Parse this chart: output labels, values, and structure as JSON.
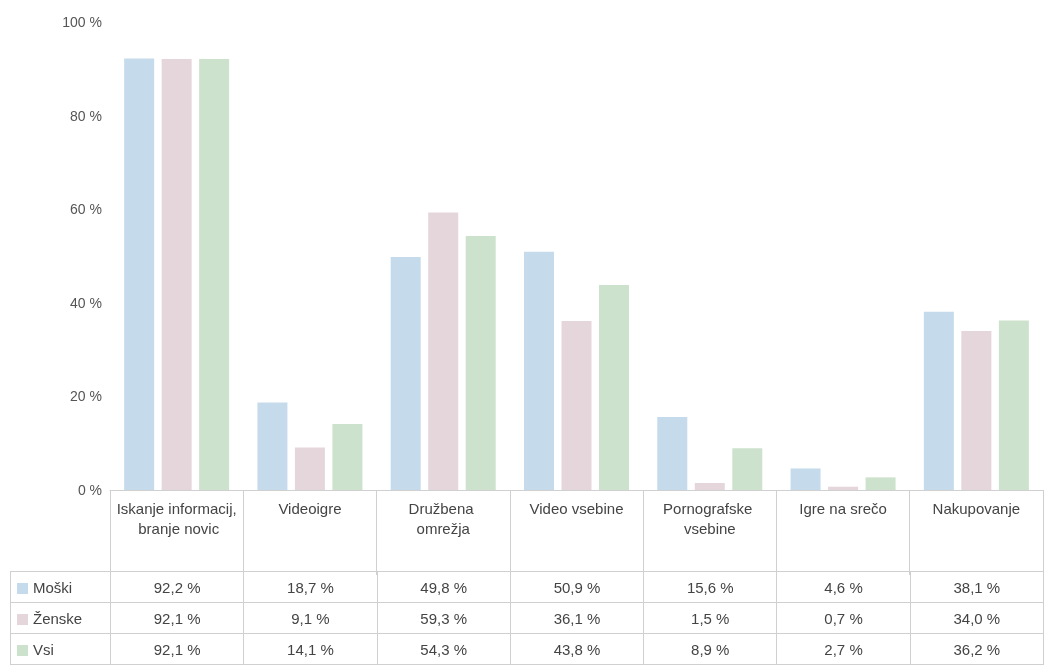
{
  "chart_data": {
    "type": "bar",
    "categories": [
      "Iskanje informacij, branje novic",
      "Videoigre",
      "Družbena omrežja",
      "Video vsebine",
      "Pornografske vsebine",
      "Igre na srečo",
      "Nakupovanje"
    ],
    "series": [
      {
        "name": "Moški",
        "color": "#c5dbeb",
        "values": [
          92.2,
          18.7,
          49.8,
          50.9,
          15.6,
          4.6,
          38.1
        ],
        "value_labels": [
          "92,2 %",
          "18,7 %",
          "49,8 %",
          "50,9 %",
          "15,6 %",
          "4,6 %",
          "38,1 %"
        ]
      },
      {
        "name": "Ženske",
        "color": "#e5d6db",
        "values": [
          92.1,
          9.1,
          59.3,
          36.1,
          1.5,
          0.7,
          34.0
        ],
        "value_labels": [
          "92,1 %",
          "9,1 %",
          "59,3 %",
          "36,1 %",
          "1,5 %",
          "0,7 %",
          "34,0 %"
        ]
      },
      {
        "name": "Vsi",
        "color": "#cde2cc",
        "values": [
          92.1,
          14.1,
          54.3,
          43.8,
          8.9,
          2.7,
          36.2
        ],
        "value_labels": [
          "92,1 %",
          "14,1 %",
          "54,3 %",
          "43,8 %",
          "8,9 %",
          "2,7 %",
          "36,2 %"
        ]
      }
    ],
    "ylim": [
      0,
      100
    ],
    "yticks": [
      {
        "value": 0,
        "label": "0 %"
      },
      {
        "value": 20,
        "label": "20 %"
      },
      {
        "value": 40,
        "label": "40 %"
      },
      {
        "value": 60,
        "label": "60 %"
      },
      {
        "value": 80,
        "label": "80 %"
      },
      {
        "value": 100,
        "label": "100 %"
      }
    ],
    "grid": false,
    "legend": "bottom"
  }
}
